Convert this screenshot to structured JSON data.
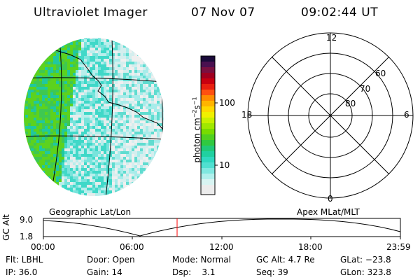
{
  "header": {
    "instrument": "Ultraviolet Imager",
    "date": "07 Nov 07",
    "time": "09:02:44 UT"
  },
  "colorbar": {
    "unit_label": "photon cm",
    "unit_exp1": "−2",
    "unit_mid": "s",
    "unit_exp2": "−1",
    "ticks": [
      "100",
      "10"
    ]
  },
  "polar": {
    "mlt_labels": {
      "top": "12",
      "left": "18",
      "right": "6",
      "bottom": "0"
    },
    "mlat_labels": [
      "60",
      "70",
      "80"
    ]
  },
  "panel_labels": {
    "left": "Geographic Lat/Lon",
    "right": "Apex MLat/MLT"
  },
  "altitude_plot": {
    "ylabel": "GC Alt",
    "yticks": [
      "9.0",
      "1.8"
    ],
    "xticks": [
      "00:00",
      "06:00",
      "12:00",
      "18:00",
      "23:59"
    ],
    "marker_color": "#ff0000"
  },
  "info": {
    "row1": [
      {
        "label": "Flt: LBHL"
      },
      {
        "label": "Door: Open"
      },
      {
        "label": "Mode: Normal"
      },
      {
        "label": "GC Alt: 4.7 Re"
      },
      {
        "label": "GLat: −23.8"
      }
    ],
    "row2": [
      {
        "label": "IP: 36.0"
      },
      {
        "label": "Gain: 14"
      },
      {
        "label": "Dsp:    3.1"
      },
      {
        "label": "Seq: 39"
      },
      {
        "label": "GLon: 323.8"
      }
    ]
  }
}
